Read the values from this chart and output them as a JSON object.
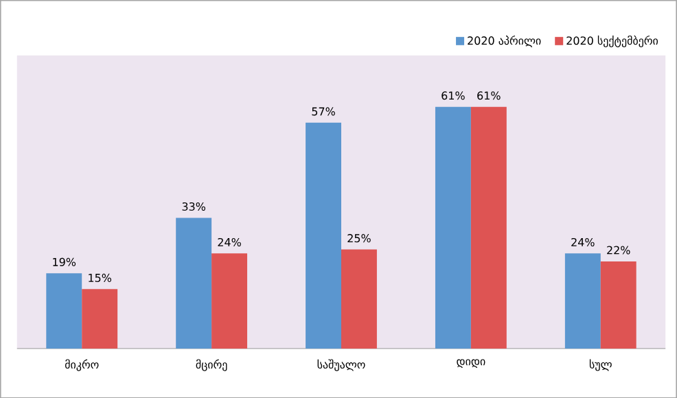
{
  "chart_data": {
    "type": "bar",
    "categories": [
      "მიკრო",
      "მცირე",
      "საშუალო",
      "დიდი",
      "სულ"
    ],
    "series": [
      {
        "name": "2020 აპრილი",
        "color": "#5b96cf",
        "values": [
          19,
          33,
          57,
          61,
          24
        ],
        "value_labels": [
          "19%",
          "33%",
          "57%",
          "61%",
          "24%"
        ]
      },
      {
        "name": "2020 სექტემბერი",
        "color": "#de5453",
        "values": [
          15,
          24,
          25,
          61,
          22
        ],
        "value_labels": [
          "15%",
          "24%",
          "25%",
          "61%",
          "22%"
        ]
      }
    ],
    "ylim": [
      0,
      74
    ],
    "legend": "top right"
  }
}
